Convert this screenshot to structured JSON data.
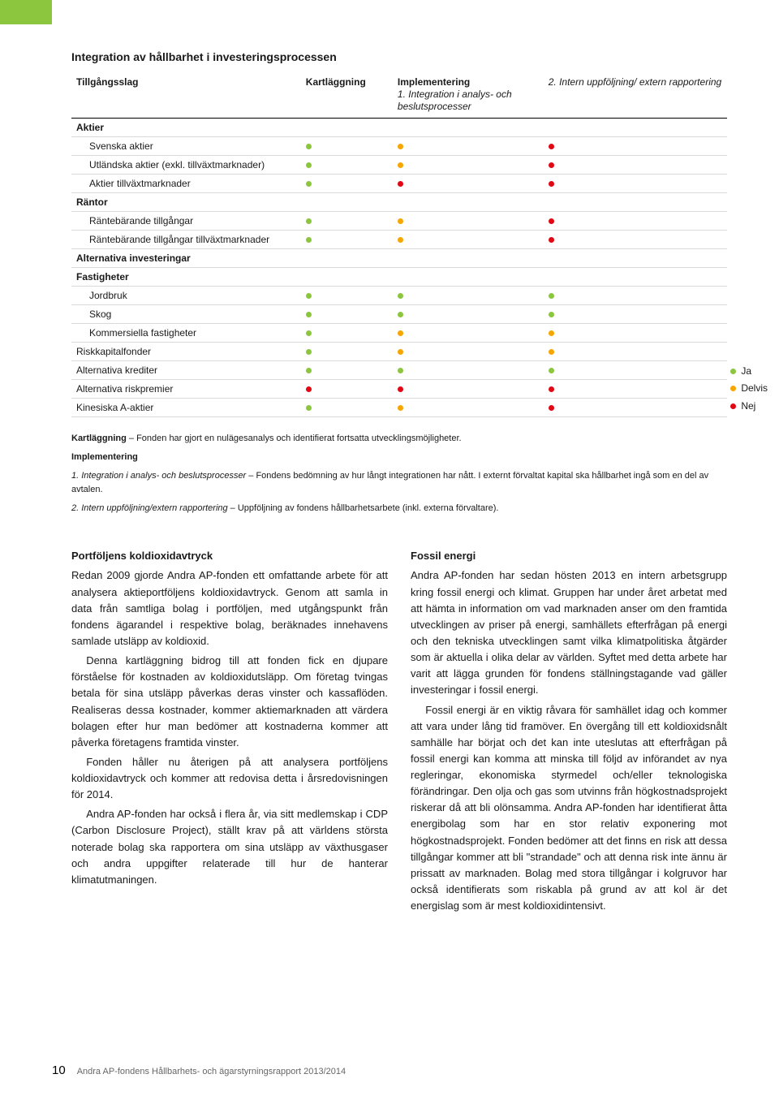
{
  "colors": {
    "ja": "#8cc63f",
    "delvis": "#f7a600",
    "nej": "#e30613",
    "accent_tab": "#8cc63f"
  },
  "title": "Integration av hållbarhet i investeringsprocessen",
  "table": {
    "headers": {
      "asset": "Tillgångsslag",
      "map": "Kartläggning",
      "impl_top": "Implementering",
      "impl_sub": "1. Integration i analys- och beslutsprocesser",
      "rep": "2. Intern uppföljning/ extern rapportering"
    },
    "rows": [
      {
        "kind": "group",
        "label": "Aktier"
      },
      {
        "kind": "item",
        "label": "Svenska aktier",
        "dots": [
          "ja",
          "delvis",
          "nej"
        ]
      },
      {
        "kind": "item",
        "label": "Utländska aktier (exkl. tillväxtmarknader)",
        "dots": [
          "ja",
          "delvis",
          "nej"
        ]
      },
      {
        "kind": "item",
        "label": "Aktier tillväxtmarknader",
        "dots": [
          "ja",
          "nej",
          "nej"
        ]
      },
      {
        "kind": "group",
        "label": "Räntor"
      },
      {
        "kind": "item",
        "label": "Räntebärande tillgångar",
        "dots": [
          "ja",
          "delvis",
          "nej"
        ]
      },
      {
        "kind": "item",
        "label": "Räntebärande tillgångar tillväxtmarknader",
        "dots": [
          "ja",
          "delvis",
          "nej"
        ]
      },
      {
        "kind": "group",
        "label": "Alternativa investeringar"
      },
      {
        "kind": "group",
        "label": "Fastigheter"
      },
      {
        "kind": "item",
        "label": "Jordbruk",
        "dots": [
          "ja",
          "ja",
          "ja"
        ]
      },
      {
        "kind": "item",
        "label": "Skog",
        "dots": [
          "ja",
          "ja",
          "ja"
        ]
      },
      {
        "kind": "item",
        "label": "Kommersiella fastigheter",
        "dots": [
          "ja",
          "delvis",
          "delvis"
        ]
      },
      {
        "kind": "plain",
        "label": "Riskkapitalfonder",
        "dots": [
          "ja",
          "delvis",
          "delvis"
        ]
      },
      {
        "kind": "plain",
        "label": "Alternativa krediter",
        "dots": [
          "ja",
          "ja",
          "ja"
        ]
      },
      {
        "kind": "plain",
        "label": "Alternativa riskpremier",
        "dots": [
          "nej",
          "nej",
          "nej"
        ]
      },
      {
        "kind": "plain",
        "label": "Kinesiska A-aktier",
        "dots": [
          "ja",
          "delvis",
          "nej"
        ]
      }
    ],
    "legend": {
      "ja": "Ja",
      "delvis": "Delvis",
      "nej": "Nej"
    },
    "legend_start_row": 13
  },
  "notes": {
    "n1_label": "Kartläggning",
    "n1_text": " – Fonden har gjort en nulägesanalys och identifierat fortsatta utvecklingsmöjligheter.",
    "impl_head": "Implementering",
    "n2_label": "1. Integration i analys- och beslutsprocesser",
    "n2_text": " – Fondens bedömning av hur långt integrationen har nått. I externt förvaltat kapital ska hållbarhet ingå som en del av avtalen.",
    "n3_label": "2. Intern uppföljning/extern rapportering",
    "n3_text": " – Uppföljning av fondens hållbarhetsarbete (inkl. externa förvaltare)."
  },
  "left": {
    "heading": "Portföljens koldioxidavtryck",
    "p1": "Redan 2009 gjorde Andra AP-fonden ett omfattande arbete för att analysera aktieportföljens koldioxidavtryck. Genom att samla in data från samtliga bolag i portföljen, med utgångspunkt från fondens ägarandel i respektive bolag, beräknades innehavens samlade utsläpp av koldioxid.",
    "p2": "Denna kartläggning bidrog till att fonden fick en djupare förståelse för kostnaden av koldioxidutsläpp. Om företag tvingas betala för sina utsläpp påverkas deras vinster och kassaflöden. Realiseras dessa kostnader, kommer aktiemarknaden att värdera bolagen efter hur man bedömer att kostnaderna kommer att påverka företagens framtida vinster.",
    "p3": "Fonden håller nu återigen på att analysera portföljens koldioxidavtryck och kommer att redovisa detta i årsredovisningen för 2014.",
    "p4": "Andra AP-fonden har också i flera år, via sitt medlemskap i CDP (Carbon Disclosure Project), ställt krav på att världens största noterade bolag ska rapportera om sina utsläpp av växthusgaser och andra uppgifter relaterade till hur de hanterar klimatutmaningen."
  },
  "right": {
    "heading": "Fossil energi",
    "p1": "Andra AP-fonden har sedan hösten 2013 en intern arbetsgrupp kring fossil energi och klimat. Gruppen har under året arbetat med att hämta in information om vad marknaden anser om den framtida utvecklingen av priser på energi, samhällets efterfrågan på energi och den tekniska utvecklingen samt vilka klimatpolitiska åtgärder som är aktuella i olika delar av världen. Syftet med detta arbete har varit att lägga grunden för fondens ställningstagande vad gäller investeringar i fossil energi.",
    "p2": "Fossil energi är en viktig råvara för samhället idag och kommer att vara under lång tid framöver. En övergång till ett koldioxidsnålt samhälle har börjat och det kan inte uteslutas att efterfrågan på fossil energi kan komma att minska till följd av införandet av nya regleringar, ekonomiska styrmedel och/eller teknologiska förändringar. Den olja och gas som utvinns från högkostnadsprojekt riskerar då att bli olönsamma. Andra AP-fonden har identifierat åtta energibolag som har en stor relativ exponering mot högkostnadsprojekt. Fonden bedömer att det finns en risk att dessa tillgångar kommer att bli \"strandade\" och att denna risk inte ännu är prissatt av marknaden. Bolag med stora tillgångar i kolgruvor har också identifierats som riskabla på grund av att kol är det energislag som är mest koldioxidintensivt."
  },
  "footer": {
    "page": "10",
    "text": "Andra AP-fondens Hållbarhets- och ägarstyrningsrapport 2013/2014"
  }
}
